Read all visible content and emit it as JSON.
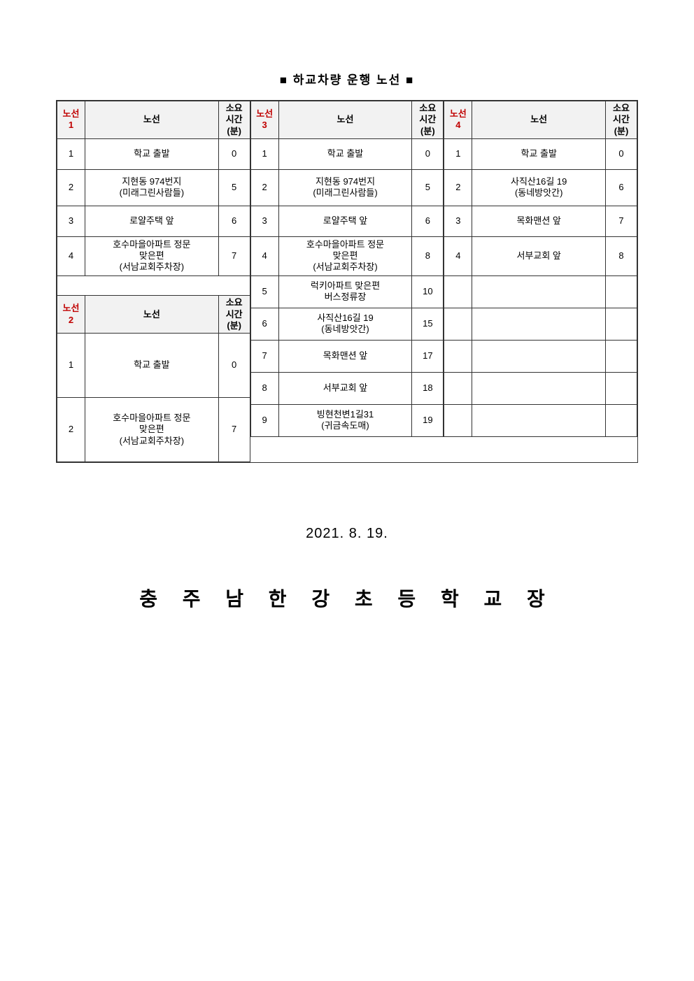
{
  "title": "■  하교차량 운행 노선  ■",
  "headers": {
    "route_label": "노선",
    "time_label": "소요\n시간\n(분)",
    "route1": "노선\n1",
    "route2": "노선\n2",
    "route3": "노선\n3",
    "route4": "노선\n4"
  },
  "route1": [
    {
      "n": "1",
      "stop": "학교 출발",
      "time": "0"
    },
    {
      "n": "2",
      "stop": "지현동 974번지\n(미래그린사람들)",
      "time": "5"
    },
    {
      "n": "3",
      "stop": "로얄주택 앞",
      "time": "6"
    },
    {
      "n": "4",
      "stop": "호수마을아파트 정문\n맞은편\n(서남교회주차장)",
      "time": "7"
    }
  ],
  "route2": [
    {
      "n": "1",
      "stop": "학교 출발",
      "time": "0"
    },
    {
      "n": "2",
      "stop": "호수마을아파트 정문\n맞은편\n(서남교회주차장)",
      "time": "7"
    }
  ],
  "route3": [
    {
      "n": "1",
      "stop": "학교 출발",
      "time": "0"
    },
    {
      "n": "2",
      "stop": "지현동 974번지\n(미래그린사람들)",
      "time": "5"
    },
    {
      "n": "3",
      "stop": "로얄주택 앞",
      "time": "6"
    },
    {
      "n": "4",
      "stop": "호수마을아파트 정문\n맞은편\n(서남교회주차장)",
      "time": "8"
    },
    {
      "n": "5",
      "stop": "럭키아파트 맞은편\n버스정류장",
      "time": "10"
    },
    {
      "n": "6",
      "stop": "사직산16길 19\n(동네방앗간)",
      "time": "15"
    },
    {
      "n": "7",
      "stop": "목화맨션 앞",
      "time": "17"
    },
    {
      "n": "8",
      "stop": "서부교회 앞",
      "time": "18"
    },
    {
      "n": "9",
      "stop": "빙현천변1길31\n(귀금속도매)",
      "time": "19"
    }
  ],
  "route4": [
    {
      "n": "1",
      "stop": "학교 출발",
      "time": "0"
    },
    {
      "n": "2",
      "stop": "사직산16길 19\n(동네방앗간)",
      "time": "6"
    },
    {
      "n": "3",
      "stop": "목화맨션 앞",
      "time": "7"
    },
    {
      "n": "4",
      "stop": "서부교회 앞",
      "time": "8"
    }
  ],
  "date": "2021. 8. 19.",
  "school": "충 주 남 한 강 초 등 학 교 장",
  "style": {
    "background_color": "#ffffff",
    "border_color": "#333333",
    "header_bg": "#f2f2f2",
    "route_no_color": "#c00000",
    "body_font_size": 13,
    "title_font_size": 17,
    "date_font_size": 20,
    "school_font_size": 28
  }
}
